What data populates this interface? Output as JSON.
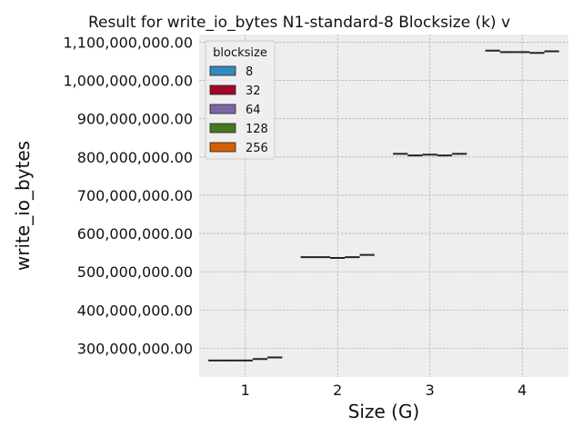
{
  "chart_data": {
    "type": "box",
    "title": "Result for write_io_bytes N1-standard-8 Blocksize (k) v",
    "xlabel": "Size (G)",
    "ylabel": "write_io_bytes",
    "categories": [
      "1",
      "2",
      "3",
      "4"
    ],
    "ylim": [
      225000000,
      1120000000
    ],
    "yticks": [
      300000000,
      400000000,
      500000000,
      600000000,
      700000000,
      800000000,
      900000000,
      1000000000,
      1100000000
    ],
    "ytick_labels": [
      "300,000,000.00",
      "400,000,000.00",
      "500,000,000.00",
      "600,000,000.00",
      "700,000,000.00",
      "800,000,000.00",
      "900,000,000.00",
      "1,000,000,000.00",
      "1,100,000,000.00"
    ],
    "legend": {
      "title": "blocksize",
      "placement": "top-left"
    },
    "series": [
      {
        "name": "8",
        "color": "#348ABD",
        "values": [
          268000000,
          538000000,
          808000000,
          1078000000
        ]
      },
      {
        "name": "32",
        "color": "#A60628",
        "values": [
          268000000,
          538000000,
          804000000,
          1074000000
        ]
      },
      {
        "name": "64",
        "color": "#7A68A6",
        "values": [
          268000000,
          536000000,
          806000000,
          1074000000
        ]
      },
      {
        "name": "128",
        "color": "#467821",
        "values": [
          272000000,
          538000000,
          804000000,
          1072000000
        ]
      },
      {
        "name": "256",
        "color": "#D55E00",
        "values": [
          276000000,
          544000000,
          808000000,
          1076000000
        ]
      }
    ],
    "grid": true,
    "style": {
      "axes_bg": "#EEEEEE",
      "grid_color": "#B2B2B2",
      "median_color": "#222222"
    }
  }
}
